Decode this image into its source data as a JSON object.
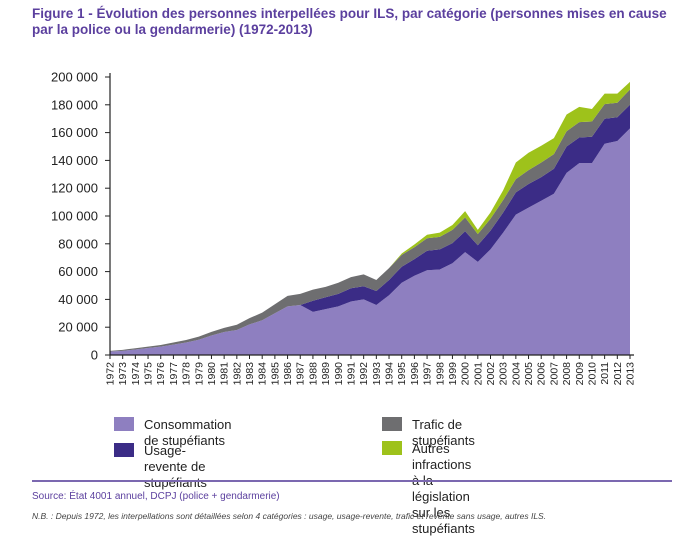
{
  "title": "Figure 1 - Évolution des personnes interpellées pour ILS, par catégorie (personnes mises en cause par la police ou la gendarmerie) (1972-2013)",
  "source": "Source: État 4001 annuel, DCPJ (police + gendarmerie)",
  "note": "N.B. : Depuis 1972, les interpellations sont détaillées selon 4 catégories : usage, usage-revente, trafic et revente sans usage, autres ILS.",
  "chart_data": {
    "type": "area",
    "stacked": true,
    "title": "Figure 1 - Évolution des personnes interpellées pour ILS, par catégorie (personnes mises en cause par la police ou la gendarmerie) (1972-2013)",
    "xlabel": "",
    "ylabel": "",
    "ylim": [
      0,
      200000
    ],
    "yticks": [
      0,
      20000,
      40000,
      60000,
      80000,
      100000,
      120000,
      140000,
      160000,
      180000,
      200000
    ],
    "ytick_labels": [
      "0",
      "20 000",
      "40 000",
      "60 000",
      "80 000",
      "100 000",
      "120 000",
      "140 000",
      "160 000",
      "180 000",
      "200 000"
    ],
    "grid": false,
    "legend_position": "bottom",
    "x": [
      "1972",
      "1973",
      "1974",
      "1975",
      "1976",
      "1977",
      "1978",
      "1979",
      "1980",
      "1981",
      "1982",
      "1983",
      "1984",
      "1985",
      "1986",
      "1987",
      "1988",
      "1989",
      "1990",
      "1991",
      "1992",
      "1993",
      "1994",
      "1995",
      "1996",
      "1997",
      "1998",
      "1999",
      "2000",
      "2001",
      "2002",
      "2003",
      "2004",
      "2005",
      "2006",
      "2007",
      "2008",
      "2009",
      "2010",
      "2011",
      "2012",
      "2013"
    ],
    "series": [
      {
        "name": "Consommation de stupéfiants",
        "color": "#8e7fc0",
        "values": [
          2500,
          3000,
          4000,
          5000,
          6000,
          7500,
          9000,
          11000,
          14000,
          16500,
          18000,
          22000,
          25000,
          30000,
          35000,
          36000,
          31000,
          33000,
          35000,
          38500,
          40000,
          36000,
          43000,
          52000,
          57000,
          61000,
          61500,
          66000,
          74000,
          67000,
          76000,
          88000,
          101000,
          106000,
          111000,
          116000,
          131000,
          138000,
          138000,
          152000,
          154000,
          163000
        ]
      },
      {
        "name": "Usage-revente de stupéfiants",
        "color": "#3b2c86",
        "values": [
          0,
          0,
          0,
          0,
          0,
          0,
          0,
          0,
          0,
          0,
          0,
          0,
          0,
          0,
          0,
          0,
          8000,
          8500,
          9000,
          9500,
          9500,
          10000,
          11000,
          11500,
          12000,
          14000,
          14500,
          14500,
          15000,
          12000,
          13500,
          14500,
          16000,
          17000,
          17000,
          18000,
          19000,
          18500,
          19000,
          18000,
          17000,
          17000
        ]
      },
      {
        "name": "Trafic de stupéfiants",
        "color": "#6e6e70",
        "values": [
          500,
          700,
          900,
          1000,
          1200,
          1500,
          1800,
          2200,
          2600,
          3000,
          3800,
          4500,
          5500,
          6500,
          7500,
          8000,
          8000,
          7500,
          8000,
          8000,
          8500,
          8000,
          8500,
          8500,
          8500,
          9000,
          9000,
          9500,
          10000,
          8000,
          8500,
          9000,
          9500,
          10000,
          10500,
          10500,
          11000,
          11000,
          11000,
          10500,
          10500,
          11000
        ]
      },
      {
        "name": "Autres infractions\nà la législation sur les stupéfiants",
        "color": "#9ec21b",
        "values": [
          0,
          0,
          0,
          0,
          0,
          0,
          0,
          0,
          0,
          0,
          0,
          0,
          0,
          0,
          0,
          0,
          0,
          0,
          0,
          0,
          0,
          0,
          0,
          1000,
          2000,
          2500,
          3000,
          3500,
          4500,
          3000,
          4500,
          7000,
          12000,
          12500,
          12000,
          11500,
          12000,
          11000,
          9000,
          7500,
          6500,
          5500
        ]
      }
    ]
  }
}
